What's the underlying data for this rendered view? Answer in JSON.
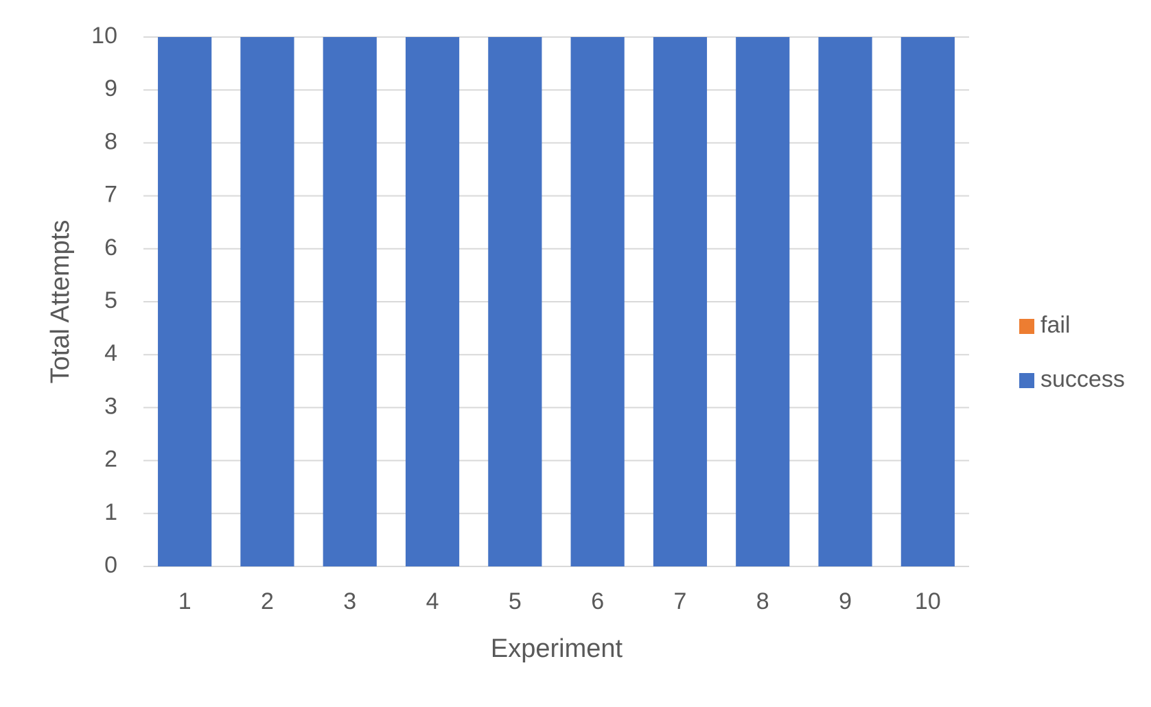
{
  "chart_data": {
    "type": "stacked-bar",
    "x_label": "Experiment",
    "y_label": "Total Attempts",
    "categories": [
      "1",
      "2",
      "3",
      "4",
      "5",
      "6",
      "7",
      "8",
      "9",
      "10"
    ],
    "series": [
      {
        "name": "success",
        "color": "#4472c4",
        "values": [
          10,
          10,
          10,
          10,
          10,
          10,
          10,
          10,
          10,
          10
        ]
      },
      {
        "name": "fail",
        "color": "#ed7d31",
        "values": [
          0,
          0,
          0,
          0,
          0,
          0,
          0,
          0,
          0,
          0
        ]
      }
    ],
    "ylim": [
      0,
      10
    ],
    "yticks": [
      0,
      1,
      2,
      3,
      4,
      5,
      6,
      7,
      8,
      9,
      10
    ],
    "grid": true,
    "legend": "right"
  }
}
